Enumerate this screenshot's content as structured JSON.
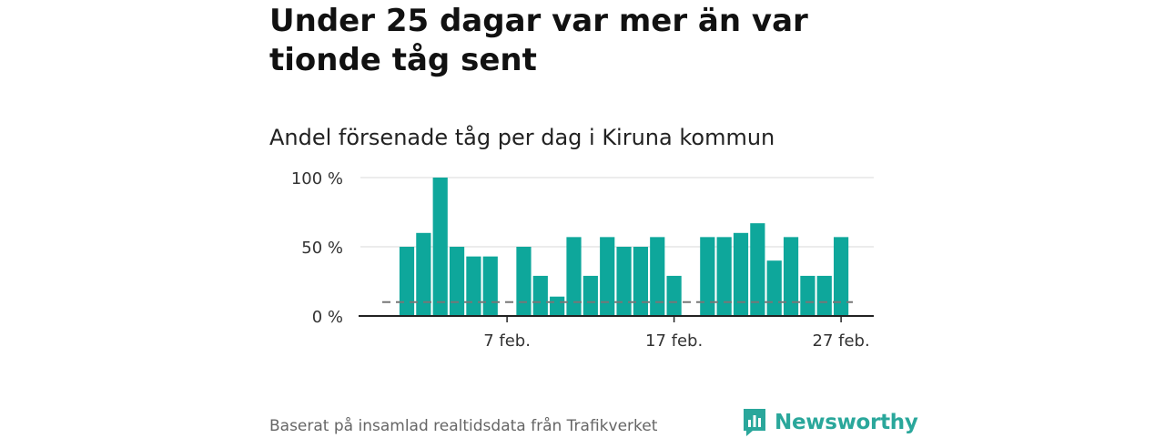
{
  "header": {
    "title": "Under 25 dagar var mer än var tionde tåg sent",
    "subtitle": "Andel försenade tåg per dag i Kiruna kommun"
  },
  "footer": {
    "source": "Baserat på insamlad realtidsdata från Trafikverket",
    "brand": "Newsworthy"
  },
  "colors": {
    "bar": "#0ea79b",
    "reference_line": "#777777",
    "brand": "#2aa79b"
  },
  "icons": {
    "brand_logo": "newsworthy-logo-icon"
  },
  "chart_data": {
    "type": "bar",
    "x": [
      "1 feb.",
      "2 feb.",
      "3 feb.",
      "4 feb.",
      "5 feb.",
      "6 feb.",
      "7 feb.",
      "8 feb.",
      "9 feb.",
      "10 feb.",
      "11 feb.",
      "12 feb.",
      "13 feb.",
      "14 feb.",
      "15 feb.",
      "16 feb.",
      "17 feb.",
      "18 feb.",
      "19 feb.",
      "20 feb.",
      "21 feb.",
      "22 feb.",
      "23 feb.",
      "24 feb.",
      "25 feb.",
      "26 feb.",
      "27 feb.",
      "28 feb."
    ],
    "values": [
      50,
      60,
      100,
      50,
      43,
      43,
      null,
      50,
      29,
      14,
      57,
      29,
      57,
      50,
      50,
      57,
      29,
      null,
      57,
      57,
      60,
      67,
      40,
      57,
      29,
      29,
      57,
      null
    ],
    "ylim": [
      0,
      100
    ],
    "y_ticks": [
      0,
      50,
      100
    ],
    "y_tick_labels": [
      "0 %",
      "50 %",
      "100 %"
    ],
    "x_ticks": [
      "7 feb.",
      "17 feb.",
      "27 feb."
    ],
    "reference_line": 10,
    "grid": "horizontal",
    "xlabel": "",
    "ylabel": ""
  }
}
